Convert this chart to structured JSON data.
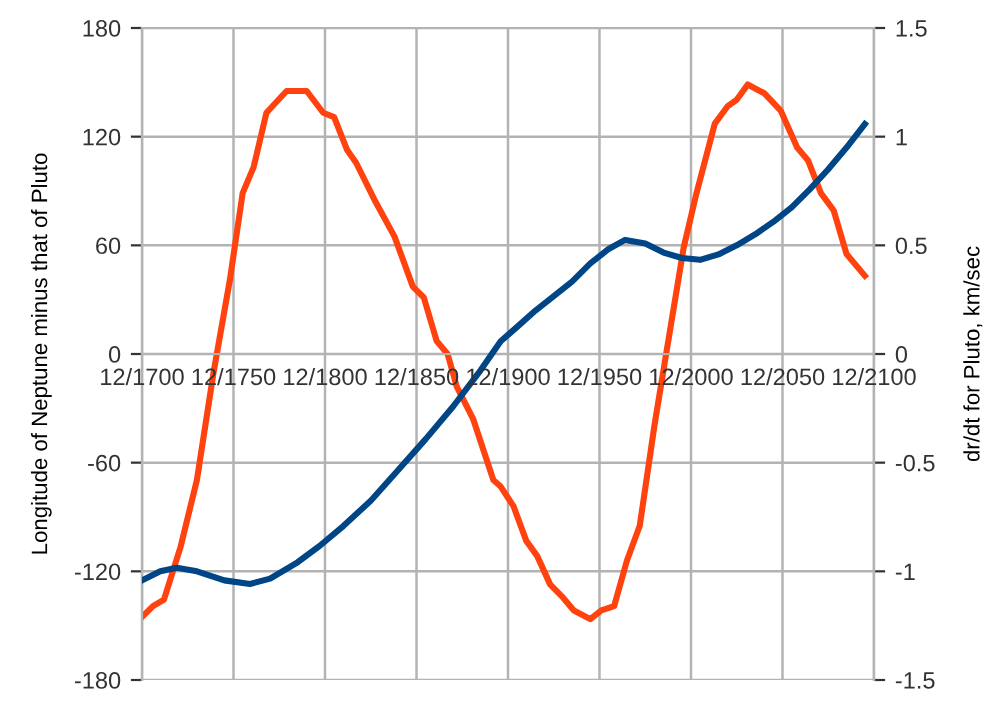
{
  "chart_data": {
    "type": "line",
    "ylabel": "Longitude of Neptune minus that of Pluto",
    "y2label": "dr/dt for Pluto, km/sec",
    "xlim": [
      "1700-12",
      "2100-12"
    ],
    "xticks": [
      {
        "value": "1700-12",
        "label": "12/1700"
      },
      {
        "value": "1750-12",
        "label": "12/1750"
      },
      {
        "value": "1800-12",
        "label": "12/1800"
      },
      {
        "value": "1850-12",
        "label": "12/1850"
      },
      {
        "value": "1900-12",
        "label": "12/1900"
      },
      {
        "value": "1950-12",
        "label": "12/1950"
      },
      {
        "value": "2000-12",
        "label": "12/2000"
      },
      {
        "value": "2050-12",
        "label": "12/2050"
      },
      {
        "value": "2100-12",
        "label": "12/2100"
      }
    ],
    "ylim": [
      -180,
      180
    ],
    "yticks": [
      -180,
      -120,
      -60,
      0,
      60,
      120,
      180
    ],
    "y2lim": [
      -1.5,
      1.5
    ],
    "y2ticks": [
      -1.5,
      -1,
      -0.5,
      0,
      0.5,
      1,
      1.5
    ],
    "grid": true,
    "legend": false,
    "marker": "none",
    "line_style": "solid",
    "series": [
      {
        "color": "#ff420e",
        "axis": "y2",
        "x": [
          "1700-12",
          "1706-12",
          "1712-12",
          "1721-12",
          "1730-12",
          "1739-12",
          "1748-12",
          "1755-12",
          "1761-12",
          "1768-12",
          "1779-12",
          "1790-12",
          "1799-12",
          "1805-12",
          "1812-12",
          "1817-12",
          "1827-12",
          "1838-12",
          "1848-12",
          "1854-12",
          "1861-12",
          "1867-12",
          "1872-12",
          "1881-12",
          "1892-12",
          "1896-12",
          "1903-12",
          "1910-12",
          "1916-12",
          "1923-12",
          "1930-12",
          "1936-12",
          "1945-12",
          "1951-12",
          "1958-12",
          "1965-12",
          "1972-12",
          "1980-12",
          "1987-12",
          "1996-12",
          "2003-12",
          "2013-12",
          "2020-12",
          "2025-12",
          "2031-12",
          "2040-12",
          "2049-12",
          "2058-12",
          "2064-12",
          "2071-12",
          "2078-12",
          "2085-12",
          "2095-12"
        ],
        "values": [
          -1.21,
          -1.16,
          -1.13,
          -0.89,
          -0.58,
          -0.09,
          0.34,
          0.74,
          0.86,
          1.11,
          1.21,
          1.21,
          1.11,
          1.09,
          0.94,
          0.88,
          0.71,
          0.54,
          0.31,
          0.26,
          0.06,
          0.0,
          -0.15,
          -0.3,
          -0.58,
          -0.61,
          -0.7,
          -0.86,
          -0.93,
          -1.06,
          -1.12,
          -1.18,
          -1.22,
          -1.18,
          -1.16,
          -0.95,
          -0.79,
          -0.33,
          0.03,
          0.49,
          0.74,
          1.06,
          1.14,
          1.17,
          1.24,
          1.2,
          1.12,
          0.95,
          0.89,
          0.74,
          0.66,
          0.46,
          0.36
        ]
      },
      {
        "color": "#004586",
        "x": [
          "1700-12",
          "1710-12",
          "1719-12",
          "1730-12",
          "1745-12",
          "1759-12",
          "1770-12",
          "1785-12",
          "1797-12",
          "1810-12",
          "1825-12",
          "1840-12",
          "1855-12",
          "1870-12",
          "1885-12",
          "1896-12",
          "1905-12",
          "1915-12",
          "1925-12",
          "1935-12",
          "1945-12",
          "1955-12",
          "1964-12",
          "1975-12",
          "1985-12",
          "1995-12",
          "2005-12",
          "2015-12",
          "2025-12",
          "2035-12",
          "2045-12",
          "2055-12",
          "2065-12",
          "2075-12",
          "2085-12",
          "2095-12"
        ],
        "values": [
          -125,
          -120,
          -118,
          -120,
          -125,
          -127,
          -124,
          -115,
          -106,
          -95,
          -81,
          -64,
          -47,
          -29,
          -9,
          7,
          15,
          24,
          32,
          40,
          50,
          58,
          63,
          61,
          56,
          53,
          52,
          55,
          60,
          66,
          73,
          81,
          91,
          102,
          114,
          127
        ]
      }
    ]
  }
}
